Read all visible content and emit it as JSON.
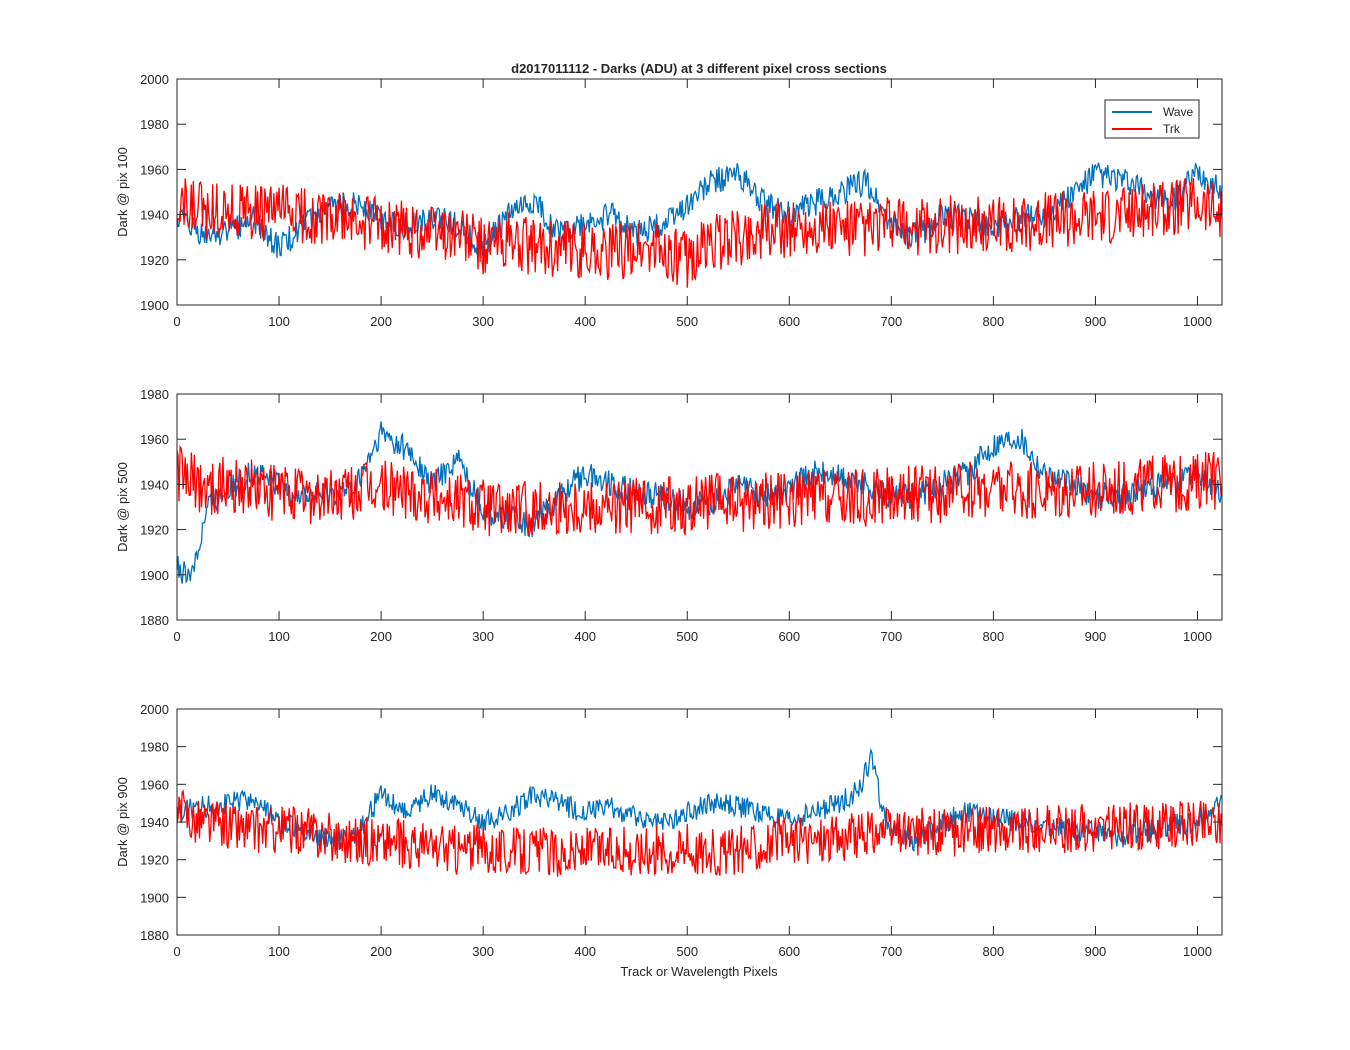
{
  "figure": {
    "title": "d2017011112 - Darks (ADU) at 3 different pixel cross sections",
    "xlabel": "Track or Wavelength Pixels"
  },
  "legend": {
    "entries": [
      "Wave",
      "Trk"
    ],
    "placement": "top-right"
  },
  "colors": {
    "wave": "#0072bd",
    "trk": "#ff0000",
    "axes": "#262626"
  },
  "chart_data": [
    {
      "type": "line",
      "ylabel": "Dark @ pix 100",
      "xlim": [
        0,
        1024
      ],
      "ylim": [
        1900,
        2000
      ],
      "xticks": [
        0,
        100,
        200,
        300,
        400,
        500,
        600,
        700,
        800,
        900,
        1000
      ],
      "yticks": [
        1900,
        1920,
        1940,
        1960,
        1980,
        2000
      ],
      "series": [
        {
          "name": "Wave",
          "color": "#0072bd",
          "x": [
            0,
            25,
            50,
            75,
            100,
            125,
            150,
            175,
            200,
            225,
            250,
            275,
            300,
            325,
            350,
            375,
            400,
            425,
            450,
            475,
            500,
            525,
            550,
            575,
            600,
            625,
            650,
            675,
            700,
            725,
            750,
            775,
            800,
            825,
            850,
            875,
            900,
            925,
            950,
            975,
            1000,
            1024
          ],
          "values": [
            1938,
            1930,
            1933,
            1938,
            1925,
            1935,
            1942,
            1946,
            1938,
            1935,
            1938,
            1936,
            1925,
            1940,
            1945,
            1932,
            1935,
            1940,
            1932,
            1935,
            1945,
            1955,
            1958,
            1945,
            1940,
            1945,
            1950,
            1955,
            1935,
            1930,
            1940,
            1938,
            1935,
            1938,
            1940,
            1948,
            1958,
            1955,
            1950,
            1945,
            1958,
            1950
          ]
        },
        {
          "name": "Trk",
          "color": "#ff0000",
          "x": [
            0,
            25,
            50,
            75,
            100,
            125,
            150,
            175,
            200,
            225,
            250,
            275,
            300,
            325,
            350,
            375,
            400,
            425,
            450,
            475,
            500,
            525,
            550,
            575,
            600,
            625,
            650,
            675,
            700,
            725,
            750,
            775,
            800,
            825,
            850,
            875,
            900,
            925,
            950,
            975,
            1000,
            1024
          ],
          "values": [
            1945,
            1942,
            1943,
            1940,
            1941,
            1940,
            1938,
            1936,
            1935,
            1934,
            1933,
            1932,
            1926,
            1928,
            1925,
            1924,
            1925,
            1923,
            1925,
            1924,
            1920,
            1928,
            1930,
            1932,
            1934,
            1935,
            1934,
            1933,
            1935,
            1934,
            1936,
            1935,
            1935,
            1936,
            1937,
            1938,
            1940,
            1940,
            1941,
            1942,
            1945,
            1940
          ]
        }
      ]
    },
    {
      "type": "line",
      "ylabel": "Dark @ pix 500",
      "xlim": [
        0,
        1024
      ],
      "ylim": [
        1880,
        1980
      ],
      "xticks": [
        0,
        100,
        200,
        300,
        400,
        500,
        600,
        700,
        800,
        900,
        1000
      ],
      "yticks": [
        1880,
        1900,
        1920,
        1940,
        1960,
        1980
      ],
      "series": [
        {
          "name": "Wave",
          "color": "#0072bd",
          "x": [
            0,
            10,
            20,
            30,
            50,
            75,
            100,
            125,
            150,
            175,
            200,
            225,
            250,
            275,
            300,
            325,
            350,
            375,
            400,
            425,
            450,
            475,
            500,
            525,
            550,
            575,
            600,
            625,
            650,
            675,
            700,
            725,
            750,
            775,
            800,
            825,
            850,
            875,
            900,
            925,
            950,
            975,
            1000,
            1024
          ],
          "values": [
            1905,
            1898,
            1910,
            1930,
            1938,
            1945,
            1940,
            1935,
            1936,
            1938,
            1962,
            1955,
            1940,
            1952,
            1928,
            1925,
            1922,
            1935,
            1945,
            1940,
            1936,
            1935,
            1930,
            1932,
            1940,
            1935,
            1938,
            1945,
            1943,
            1940,
            1935,
            1935,
            1940,
            1945,
            1958,
            1962,
            1945,
            1940,
            1935,
            1935,
            1938,
            1940,
            1945,
            1935
          ]
        },
        {
          "name": "Trk",
          "color": "#ff0000",
          "x": [
            0,
            10,
            20,
            30,
            50,
            75,
            100,
            125,
            150,
            175,
            200,
            225,
            250,
            275,
            300,
            325,
            350,
            375,
            400,
            425,
            450,
            475,
            500,
            525,
            550,
            575,
            600,
            625,
            650,
            675,
            700,
            725,
            750,
            775,
            800,
            825,
            850,
            875,
            900,
            925,
            950,
            975,
            1000,
            1024
          ],
          "values": [
            1945,
            1942,
            1940,
            1938,
            1940,
            1938,
            1936,
            1935,
            1934,
            1936,
            1938,
            1937,
            1935,
            1933,
            1930,
            1928,
            1929,
            1930,
            1931,
            1930,
            1930,
            1931,
            1930,
            1932,
            1931,
            1933,
            1932,
            1934,
            1933,
            1934,
            1935,
            1936,
            1935,
            1937,
            1938,
            1938,
            1937,
            1938,
            1938,
            1939,
            1940,
            1940,
            1942,
            1941
          ]
        }
      ]
    },
    {
      "type": "line",
      "ylabel": "Dark @ pix 900",
      "xlabel": "Track or Wavelength Pixels",
      "xlim": [
        0,
        1024
      ],
      "ylim": [
        1880,
        2000
      ],
      "xticks": [
        0,
        100,
        200,
        300,
        400,
        500,
        600,
        700,
        800,
        900,
        1000
      ],
      "yticks": [
        1880,
        1900,
        1920,
        1940,
        1960,
        1980,
        2000
      ],
      "series": [
        {
          "name": "Wave",
          "color": "#0072bd",
          "x": [
            0,
            25,
            50,
            75,
            100,
            125,
            150,
            175,
            200,
            225,
            250,
            275,
            300,
            325,
            350,
            375,
            400,
            425,
            450,
            475,
            500,
            525,
            550,
            575,
            600,
            625,
            650,
            670,
            680,
            690,
            700,
            725,
            750,
            775,
            800,
            825,
            850,
            875,
            900,
            925,
            950,
            975,
            1000,
            1024
          ],
          "values": [
            1945,
            1948,
            1950,
            1952,
            1940,
            1935,
            1930,
            1932,
            1955,
            1945,
            1955,
            1950,
            1940,
            1945,
            1955,
            1950,
            1945,
            1948,
            1942,
            1940,
            1945,
            1950,
            1948,
            1945,
            1940,
            1945,
            1950,
            1958,
            1975,
            1950,
            1935,
            1930,
            1940,
            1945,
            1942,
            1940,
            1938,
            1936,
            1935,
            1932,
            1935,
            1938,
            1940,
            1950
          ]
        },
        {
          "name": "Trk",
          "color": "#ff0000",
          "x": [
            0,
            25,
            50,
            75,
            100,
            125,
            150,
            175,
            200,
            225,
            250,
            275,
            300,
            325,
            350,
            375,
            400,
            425,
            450,
            475,
            500,
            525,
            550,
            575,
            600,
            625,
            650,
            670,
            680,
            690,
            700,
            725,
            750,
            775,
            800,
            825,
            850,
            875,
            900,
            925,
            950,
            975,
            1000,
            1024
          ],
          "values": [
            1945,
            1940,
            1938,
            1935,
            1936,
            1935,
            1932,
            1930,
            1930,
            1928,
            1926,
            1925,
            1926,
            1924,
            1925,
            1923,
            1924,
            1925,
            1924,
            1925,
            1926,
            1924,
            1925,
            1928,
            1930,
            1931,
            1932,
            1933,
            1934,
            1935,
            1934,
            1935,
            1934,
            1935,
            1936,
            1936,
            1937,
            1936,
            1937,
            1938,
            1938,
            1939,
            1940,
            1940
          ]
        }
      ]
    }
  ]
}
